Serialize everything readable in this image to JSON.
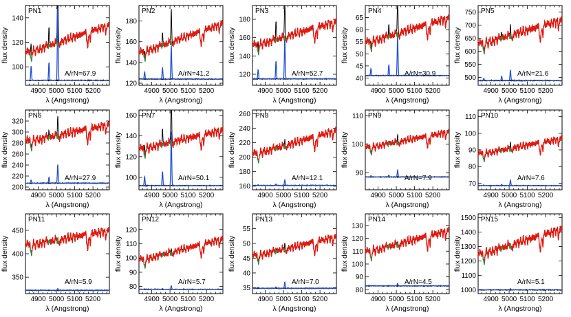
{
  "colors": {
    "model": "#e8170c",
    "observed": "#000000",
    "emission": "#1f4fd6",
    "masked": "#1a9a4a",
    "residual": "#000000"
  },
  "chart_data": {
    "type": "line",
    "xlabel": "λ (Angstrong)",
    "ylabel": "flux density",
    "xlim": [
      4830,
      5290
    ],
    "xticks": [
      4900,
      5000,
      5100,
      5200
    ],
    "panels": [
      {
        "name": "PN1",
        "annotation": "A/rN=67.9",
        "ylim": [
          85,
          150
        ],
        "yticks": [
          100,
          120,
          140
        ],
        "continuum_start": 112,
        "continuum_end": 136,
        "residual_level": 89,
        "line_peak": 150,
        "line_4959": 104,
        "line_4861": 101
      },
      {
        "name": "PN2",
        "annotation": "A/rN=41.2",
        "ylim": [
          118,
          195
        ],
        "yticks": [
          120,
          140,
          160,
          180
        ],
        "continuum_start": 150,
        "continuum_end": 180,
        "residual_level": 124,
        "line_peak": 157,
        "line_4959": 135,
        "line_4861": 131
      },
      {
        "name": "PN3",
        "annotation": "A/rN=52.7",
        "ylim": [
          108,
          195
        ],
        "yticks": [
          120,
          140,
          160,
          180
        ],
        "continuum_start": 152,
        "continuum_end": 180,
        "residual_level": 115,
        "line_peak": 162,
        "line_4959": 135,
        "line_4861": 125
      },
      {
        "name": "PN4",
        "annotation": "A/rN=30.9",
        "ylim": [
          37,
          70
        ],
        "yticks": [
          40,
          45,
          50,
          55,
          60,
          65
        ],
        "continuum_start": 55,
        "continuum_end": 66,
        "residual_level": 41,
        "line_peak": 58,
        "line_4959": 45.5,
        "line_4861": 44
      },
      {
        "name": "PN5",
        "annotation": "A/rN=21.6",
        "ylim": [
          470,
          775
        ],
        "yticks": [
          500,
          550,
          600,
          650,
          700,
          750
        ],
        "continuum_start": 630,
        "continuum_end": 730,
        "residual_level": 488,
        "line_peak": 530,
        "line_4959": 505,
        "line_4861": 497
      },
      {
        "name": "PN6",
        "annotation": "A/rN=27.9",
        "ylim": [
          195,
          340
        ],
        "yticks": [
          200,
          220,
          240,
          260,
          280,
          300,
          320
        ],
        "continuum_start": 285,
        "continuum_end": 318,
        "residual_level": 207,
        "line_peak": 242,
        "line_4959": 218,
        "line_4861": 213
      },
      {
        "name": "PN7",
        "annotation": "A/rN=50.1",
        "ylim": [
          88,
          165
        ],
        "yticks": [
          100,
          120,
          140,
          160
        ],
        "continuum_start": 128,
        "continuum_end": 148,
        "residual_level": 92,
        "line_peak": 146,
        "line_4959": 106,
        "line_4861": 101
      },
      {
        "name": "PN8",
        "annotation": "A/rN=12.1",
        "ylim": [
          155,
          265
        ],
        "yticks": [
          160,
          180,
          200,
          220,
          240,
          260
        ],
        "continuum_start": 205,
        "continuum_end": 240,
        "residual_level": 161,
        "line_peak": 169,
        "line_4959": 163,
        "line_4861": 162
      },
      {
        "name": "PN9",
        "annotation": "A/rN=7.9",
        "ylim": [
          84,
          112
        ],
        "yticks": [
          90,
          100,
          110
        ],
        "continuum_start": 99,
        "continuum_end": 105,
        "residual_level": 88.5,
        "line_peak": 91,
        "line_4959": 89.2,
        "line_4861": 89
      },
      {
        "name": "PN10",
        "annotation": "A/rN=7.6",
        "ylim": [
          66,
          114
        ],
        "yticks": [
          70,
          80,
          90,
          100,
          110
        ],
        "continuum_start": 88,
        "continuum_end": 98,
        "residual_level": 68.5,
        "line_peak": 72,
        "line_4959": 69.3,
        "line_4861": 69
      },
      {
        "name": "PN11",
        "annotation": "A/rN=5.9",
        "ylim": [
          315,
          485
        ],
        "yticks": [
          350,
          400,
          450
        ],
        "continuum_start": 420,
        "continuum_end": 455,
        "residual_level": 322,
        "line_peak": 326,
        "line_4959": 323,
        "line_4861": 323
      },
      {
        "name": "PN12",
        "annotation": "A/rN=5.7",
        "ylim": [
          75,
          131
        ],
        "yticks": [
          80,
          90,
          100,
          110,
          120
        ],
        "continuum_start": 99,
        "continuum_end": 115,
        "residual_level": 78,
        "line_peak": 80.5,
        "line_4959": 78.6,
        "line_4861": 78.4
      },
      {
        "name": "PN13",
        "annotation": "A/rN=7.0",
        "ylim": [
          33,
          60
        ],
        "yticks": [
          35,
          40,
          45,
          50,
          55
        ],
        "continuum_start": 46,
        "continuum_end": 53,
        "residual_level": 34.8,
        "line_peak": 37,
        "line_4959": 35.3,
        "line_4861": 35.2
      },
      {
        "name": "PN14",
        "annotation": "A/rN=4.5",
        "ylim": [
          77,
          139
        ],
        "yticks": [
          80,
          90,
          100,
          110,
          120,
          130
        ],
        "continuum_start": 110,
        "continuum_end": 128,
        "residual_level": 83,
        "line_peak": 85,
        "line_4959": 83.5,
        "line_4861": 83.3
      },
      {
        "name": "PN15",
        "annotation": "A/rN=5.1",
        "ylim": [
          975,
          1525
        ],
        "yticks": [
          1000,
          1100,
          1200,
          1300,
          1400,
          1500
        ],
        "continuum_start": 1250,
        "continuum_end": 1440,
        "residual_level": 1001,
        "line_peak": 1010,
        "line_4959": 1003,
        "line_4861": 1002
      }
    ]
  }
}
